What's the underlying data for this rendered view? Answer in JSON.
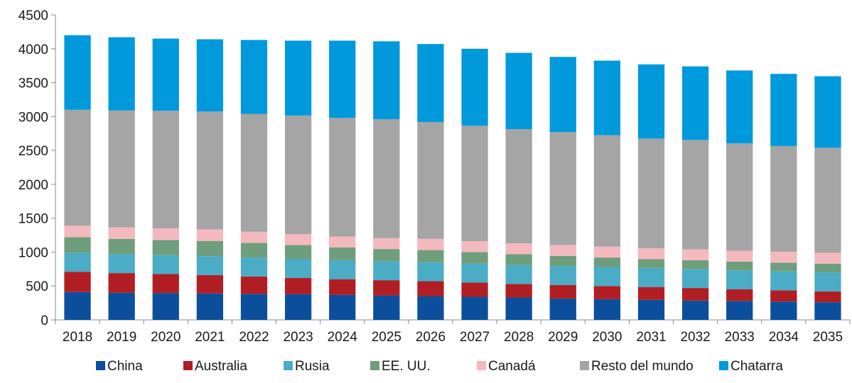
{
  "chart_data": {
    "type": "bar",
    "stacked": true,
    "title": "",
    "xlabel": "",
    "ylabel": "",
    "ylim": [
      0,
      4500
    ],
    "yticks": [
      "0",
      "500",
      "1000",
      "1500",
      "2000",
      "2500",
      "3000",
      "3500",
      "4000",
      "4500"
    ],
    "grid": false,
    "legend_position": "bottom",
    "categories": [
      "2018",
      "2019",
      "2020",
      "2021",
      "2022",
      "2023",
      "2024",
      "2025",
      "2026",
      "2027",
      "2028",
      "2029",
      "2030",
      "2031",
      "2032",
      "2033",
      "2034",
      "2035"
    ],
    "series": [
      {
        "name": "China",
        "color": "#0b4f9c",
        "values": [
          410,
          400,
          395,
          390,
          385,
          380,
          370,
          360,
          350,
          340,
          330,
          315,
          305,
          295,
          285,
          280,
          270,
          260
        ]
      },
      {
        "name": "Australia",
        "color": "#b01e23",
        "values": [
          300,
          290,
          280,
          270,
          255,
          240,
          230,
          225,
          220,
          210,
          200,
          200,
          195,
          190,
          185,
          170,
          165,
          160
        ]
      },
      {
        "name": "Rusia",
        "color": "#4bacc6",
        "values": [
          280,
          280,
          280,
          280,
          280,
          280,
          280,
          280,
          280,
          280,
          280,
          280,
          280,
          280,
          280,
          280,
          280,
          280
        ]
      },
      {
        "name": "EE. UU.",
        "color": "#6f9e7c",
        "values": [
          230,
          225,
          225,
          225,
          215,
          205,
          190,
          180,
          180,
          170,
          160,
          150,
          140,
          130,
          130,
          130,
          130,
          130
        ]
      },
      {
        "name": "Canadá",
        "color": "#f4b9be",
        "values": [
          170,
          170,
          170,
          170,
          165,
          160,
          160,
          160,
          165,
          160,
          160,
          160,
          160,
          160,
          160,
          160,
          160,
          160
        ]
      },
      {
        "name": "Resto del mundo",
        "color": "#a5a5a5",
        "values": [
          1710,
          1725,
          1735,
          1740,
          1740,
          1750,
          1750,
          1755,
          1725,
          1705,
          1685,
          1665,
          1645,
          1620,
          1615,
          1585,
          1560,
          1550
        ]
      },
      {
        "name": "Chatarra",
        "color": "#0099db",
        "values": [
          1100,
          1080,
          1065,
          1065,
          1090,
          1105,
          1140,
          1150,
          1150,
          1135,
          1125,
          1110,
          1100,
          1095,
          1085,
          1075,
          1065,
          1055
        ]
      }
    ]
  }
}
